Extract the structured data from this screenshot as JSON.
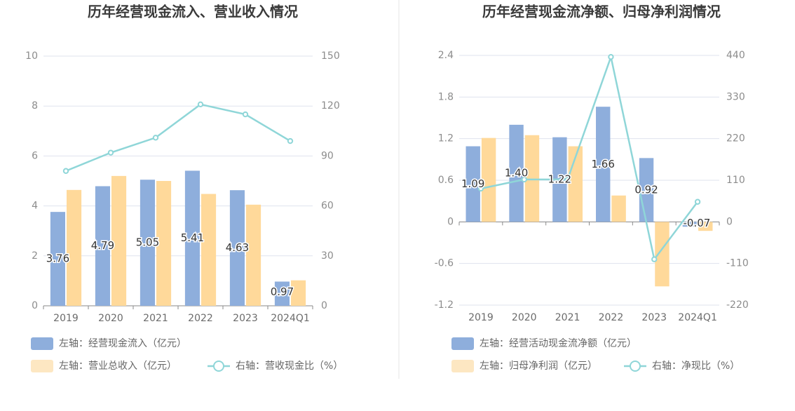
{
  "colors": {
    "bar_blue": "#8eaedc",
    "bar_orange": "#ffd99a",
    "line": "#8fd6d8",
    "grid": "#dfe3ee",
    "divider": "#e6e6e6",
    "axis": "#8a8a8a"
  },
  "chart_data": [
    {
      "type": "bar",
      "title": "历年经营现金流入、营业收入情况",
      "categories": [
        "2019",
        "2020",
        "2021",
        "2022",
        "2023",
        "2024Q1"
      ],
      "left_axis": {
        "ticks": [
          "0",
          "2",
          "4",
          "6",
          "8",
          "10"
        ],
        "ylim": [
          0,
          10
        ]
      },
      "right_axis": {
        "ticks": [
          "0",
          "30",
          "60",
          "90",
          "120",
          "150"
        ],
        "ylim": [
          0,
          150
        ]
      },
      "series": [
        {
          "name": "左轴：经营现金流入（亿元）",
          "axis": "left",
          "kind": "bar",
          "color": "#8eaedc",
          "values": [
            3.76,
            4.79,
            5.05,
            5.41,
            4.63,
            0.97
          ],
          "labels": [
            "3.76",
            "4.79",
            "5.05",
            "5.41",
            "4.63",
            "0.97"
          ]
        },
        {
          "name": "左轴：营业总收入（亿元）",
          "axis": "left",
          "kind": "bar",
          "color": "#ffd99a",
          "values": [
            4.64,
            5.2,
            5.0,
            4.48,
            4.05,
            1.02
          ]
        },
        {
          "name": "右轴：营收现金比（%）",
          "axis": "right",
          "kind": "line",
          "color": "#8fd6d8",
          "values": [
            81,
            92,
            101,
            121,
            115,
            99
          ]
        }
      ],
      "grid": true,
      "legend_position": "bottom-left"
    },
    {
      "type": "bar",
      "title": "历年经营现金流净额、归母净利润情况",
      "categories": [
        "2019",
        "2020",
        "2021",
        "2022",
        "2023",
        "2024Q1"
      ],
      "left_axis": {
        "ticks": [
          "-1.2",
          "-0.6",
          "0",
          "0.6",
          "1.2",
          "1.8",
          "2.4"
        ],
        "ylim": [
          -1.2,
          2.4
        ]
      },
      "right_axis": {
        "ticks": [
          "-220",
          "-110",
          "0",
          "110",
          "220",
          "330",
          "440"
        ],
        "ylim": [
          -220,
          440
        ]
      },
      "series": [
        {
          "name": "左轴：经营活动现金流净额（亿元）",
          "axis": "left",
          "kind": "bar",
          "color": "#8eaedc",
          "values": [
            1.09,
            1.4,
            1.22,
            1.66,
            0.92,
            -0.07
          ],
          "labels": [
            "1.09",
            "1.40",
            "1.22",
            "1.66",
            "0.92",
            "-0.07"
          ]
        },
        {
          "name": "左轴：归母净利润（亿元）",
          "axis": "left",
          "kind": "bar",
          "color": "#ffd99a",
          "values": [
            1.21,
            1.25,
            1.09,
            0.38,
            -0.93,
            -0.13
          ]
        },
        {
          "name": "右轴：净现比（%）",
          "axis": "right",
          "kind": "line",
          "color": "#8fd6d8",
          "values": [
            88,
            112,
            112,
            436,
            -99,
            53
          ]
        }
      ],
      "grid": true,
      "legend_position": "bottom-left"
    }
  ]
}
